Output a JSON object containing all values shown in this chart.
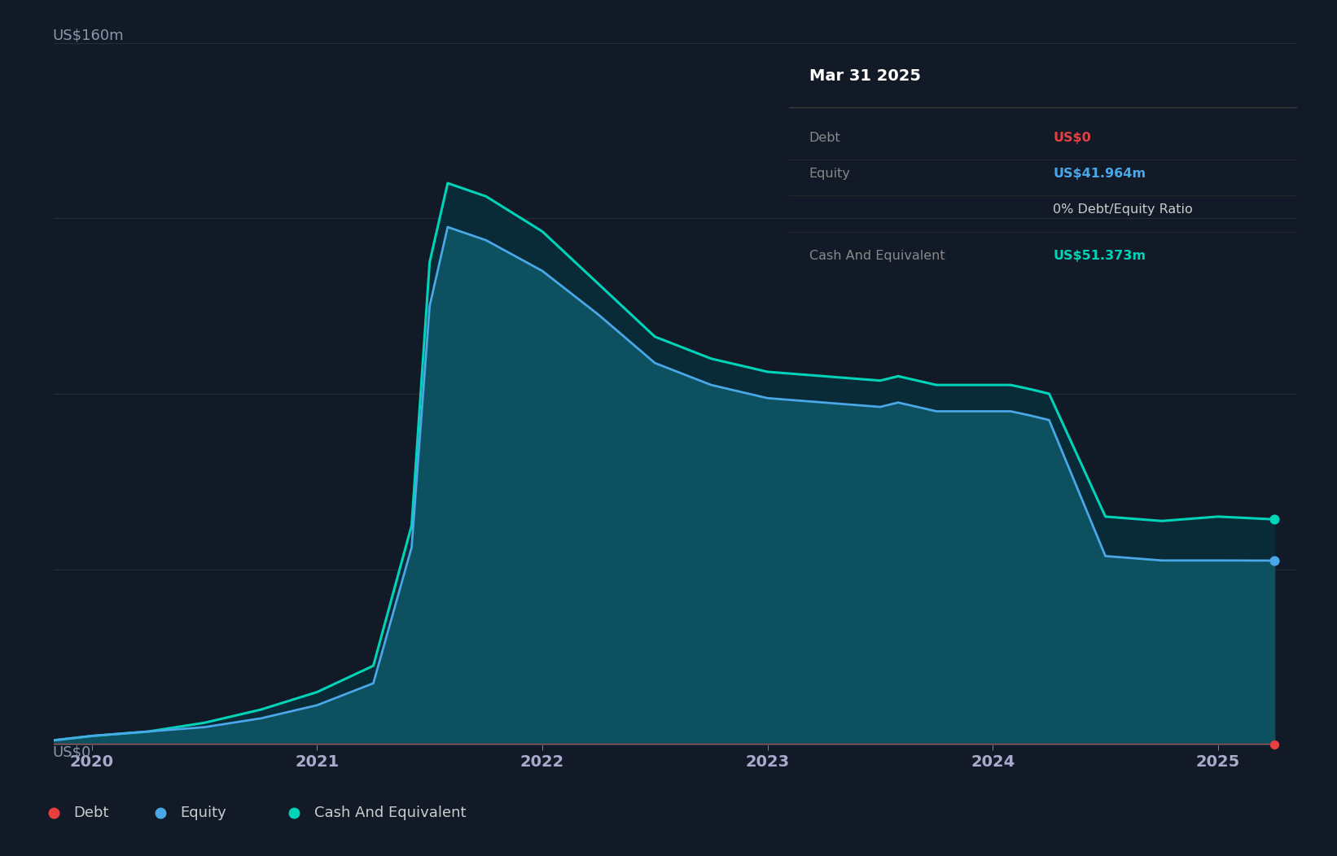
{
  "bg_color": "#131a27",
  "plot_bg_color": "#131a27",
  "grid_color": "#252d3d",
  "x_dates": [
    2019.83,
    2020.0,
    2020.25,
    2020.5,
    2020.75,
    2021.0,
    2021.25,
    2021.42,
    2021.5,
    2021.58,
    2021.75,
    2022.0,
    2022.25,
    2022.5,
    2022.75,
    2023.0,
    2023.25,
    2023.5,
    2023.58,
    2023.75,
    2024.0,
    2024.08,
    2024.17,
    2024.25,
    2024.5,
    2024.75,
    2025.0,
    2025.25
  ],
  "debt": [
    0,
    0,
    0,
    0,
    0,
    0,
    0,
    0,
    0,
    0,
    0,
    0,
    0,
    0,
    0,
    0,
    0,
    0,
    0,
    0,
    0,
    0,
    0,
    0,
    0,
    0,
    0,
    0
  ],
  "equity": [
    1,
    2,
    3,
    4,
    6,
    9,
    14,
    45,
    100,
    118,
    115,
    108,
    98,
    87,
    82,
    79,
    78,
    77,
    78,
    76,
    76,
    76,
    75,
    74,
    43,
    42,
    42,
    41.964
  ],
  "cash": [
    1,
    2,
    3,
    5,
    8,
    12,
    18,
    50,
    110,
    128,
    125,
    117,
    105,
    93,
    88,
    85,
    84,
    83,
    84,
    82,
    82,
    82,
    81,
    80,
    52,
    51,
    52,
    51.373
  ],
  "debt_color": "#e84040",
  "equity_color": "#4aa8e8",
  "cash_color": "#00d4b8",
  "fill_base_color": "#0d4d5e",
  "fill_top_color": "#0a3545",
  "ylim": [
    0,
    160
  ],
  "xlim": [
    2019.83,
    2025.35
  ],
  "xticks": [
    2020,
    2021,
    2022,
    2023,
    2024,
    2025
  ],
  "xtick_labels": [
    "2020",
    "2021",
    "2022",
    "2023",
    "2024",
    "2025"
  ],
  "legend_items": [
    {
      "label": "Debt",
      "color": "#e84040"
    },
    {
      "label": "Equity",
      "color": "#4aa8e8"
    },
    {
      "label": "Cash And Equivalent",
      "color": "#00d4b8"
    }
  ],
  "tooltip": {
    "title": "Mar 31 2025",
    "rows": [
      {
        "label": "Debt",
        "value": "US$0",
        "value_color": "#e84040"
      },
      {
        "label": "Equity",
        "value": "US$41.964m",
        "value_color": "#4aa8e8"
      },
      {
        "label": "",
        "value": "0% Debt/Equity Ratio",
        "value_color": "#cccccc"
      },
      {
        "label": "Cash And Equivalent",
        "value": "US$51.373m",
        "value_color": "#00d4b8"
      }
    ]
  }
}
